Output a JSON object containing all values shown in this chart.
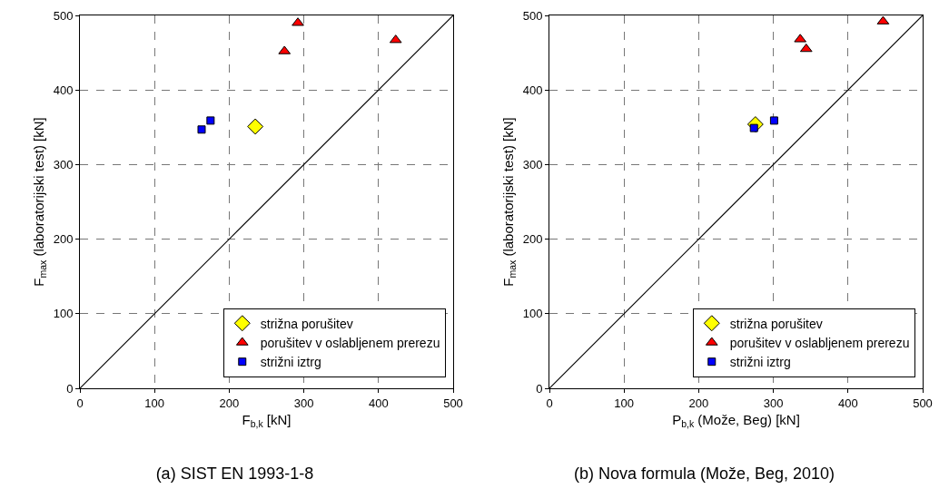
{
  "chart_data": [
    {
      "type": "scatter",
      "title": "(a) SIST EN 1993-1-8",
      "xlabel": "F$_{b,k}$ [kN]",
      "ylabel": "F$_{max}$ (laboratorijski test) [kN]",
      "xlim": [
        0,
        500
      ],
      "ylim": [
        0,
        500
      ],
      "xticks": [
        0,
        100,
        200,
        300,
        400,
        500
      ],
      "yticks": [
        0,
        100,
        200,
        300,
        400,
        500
      ],
      "grid": true,
      "legend": "bottom right",
      "series": [
        {
          "name": "strižna porušitev",
          "color": "#ffff00",
          "marker": "diamond",
          "x": [
            235
          ],
          "values": [
            351
          ]
        },
        {
          "name": "porušitev v oslabljenem prerezu",
          "color": "#ff0000",
          "marker": "triangle",
          "x": [
            292,
            274,
            423
          ],
          "values": [
            490,
            452,
            467
          ]
        },
        {
          "name": "strižni iztrg",
          "color": "#0000ff",
          "marker": "square",
          "x": [
            175,
            163
          ],
          "values": [
            359,
            347
          ]
        },
        {
          "type": "line",
          "color": "#000000",
          "line_style": "solid",
          "marker": "none",
          "x": [
            0,
            500
          ],
          "values": [
            0,
            500
          ]
        }
      ]
    },
    {
      "type": "scatter",
      "title": "(b) Nova formula (Može, Beg, 2010)",
      "xlabel": "P$_{b,k}$ (Može, Beg) [kN]",
      "ylabel": "F$_{max}$ (laboratorijski test) [kN]",
      "xlim": [
        0,
        500
      ],
      "ylim": [
        0,
        500
      ],
      "xticks": [
        0,
        100,
        200,
        300,
        400,
        500
      ],
      "yticks": [
        0,
        100,
        200,
        300,
        400,
        500
      ],
      "grid": true,
      "legend": "bottom right",
      "series": [
        {
          "name": "strižna porušitev",
          "color": "#ffff00",
          "marker": "diamond",
          "x": [
            276
          ],
          "values": [
            354
          ]
        },
        {
          "name": "porušitev v oslabljenem prerezu",
          "color": "#ff0000",
          "marker": "triangle",
          "x": [
            447,
            336,
            344
          ],
          "values": [
            492,
            468,
            455
          ]
        },
        {
          "name": "strižni iztrg",
          "color": "#0000ff",
          "marker": "square",
          "x": [
            301,
            274
          ],
          "values": [
            359,
            349
          ]
        },
        {
          "type": "line",
          "color": "#000000",
          "line_style": "solid",
          "marker": "none",
          "x": [
            0,
            500
          ],
          "values": [
            0,
            500
          ]
        }
      ]
    }
  ]
}
